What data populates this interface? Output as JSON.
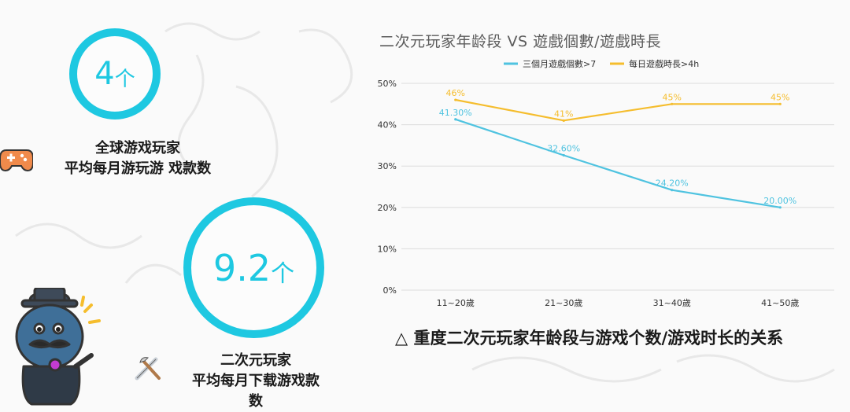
{
  "stat1": {
    "number": "4",
    "unit": "个",
    "line1": "全球游戏玩家",
    "line2": "平均每月游玩游 戏款数"
  },
  "stat2": {
    "number": "9.2",
    "unit": "个",
    "line1": "二次元玩家",
    "line2": "平均每月下载游戏款",
    "line3": "数"
  },
  "caption": "△ 重度二次元玩家年龄段与游戏个数/游戏时长的关系",
  "icons": [
    "gamepad-icon",
    "tools-icon",
    "mascot-icon"
  ],
  "colors": {
    "accent": "#1ec8e1",
    "series1": "#4fc3e0",
    "series2": "#f5bd2d"
  },
  "chart_data": {
    "type": "line",
    "title": "二次元玩家年龄段 VS 遊戲個數/遊戲時長",
    "categories": [
      "11~20歲",
      "21~30歲",
      "31~40歲",
      "41~50歲"
    ],
    "y_ticks": [
      "0%",
      "10%",
      "20%",
      "30%",
      "40%",
      "50%"
    ],
    "ylim": [
      0,
      50
    ],
    "grid": true,
    "legend": "top",
    "series": [
      {
        "name": "三個月遊戲個數>7",
        "color": "#4fc3e0",
        "values": [
          41.3,
          32.6,
          24.2,
          20.0
        ],
        "labels": [
          "41.30%",
          "32.60%",
          "24.20%",
          "20.00%"
        ]
      },
      {
        "name": "每日遊戲時長>4h",
        "color": "#f5bd2d",
        "values": [
          46,
          41,
          45,
          45
        ],
        "labels": [
          "46%",
          "41%",
          "45%",
          "45%"
        ]
      }
    ]
  }
}
